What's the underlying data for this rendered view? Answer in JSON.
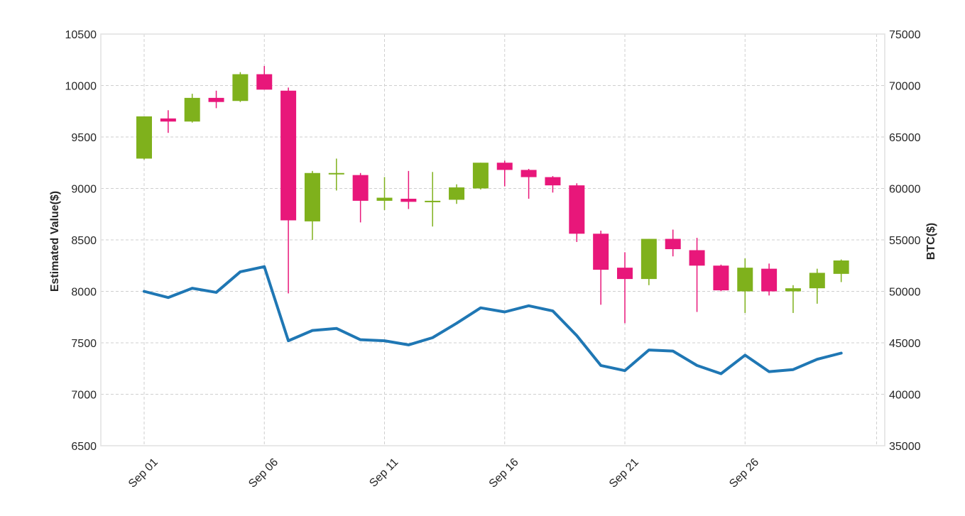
{
  "chart_data": {
    "type": "candlestick",
    "xlabel": "",
    "ylabel_left": "Estimated Value($)",
    "ylabel_right": "BTC($)",
    "ylim_left": [
      6500,
      10500
    ],
    "ylim_right": [
      35000,
      75000
    ],
    "yticks_left": [
      6500,
      7000,
      7500,
      8000,
      8500,
      9000,
      9500,
      10000,
      10500
    ],
    "yticks_right": [
      35000,
      40000,
      45000,
      50000,
      55000,
      60000,
      65000,
      70000,
      75000
    ],
    "xtick_labels": [
      {
        "day": 1,
        "label": "Sep 01"
      },
      {
        "day": 6,
        "label": "Sep 06"
      },
      {
        "day": 11,
        "label": "Sep 11"
      },
      {
        "day": 16,
        "label": "Sep 16"
      },
      {
        "day": 21,
        "label": "Sep 21"
      },
      {
        "day": 26,
        "label": "Sep 26"
      }
    ],
    "xlim_days": [
      1,
      31.5
    ],
    "grid": true,
    "colors": {
      "up": "#7fb11c",
      "down": "#e8177a",
      "line": "#1f77b4"
    },
    "candles": [
      {
        "day": 1,
        "open": 9290,
        "close": 9700,
        "high": 9700,
        "low": 9280
      },
      {
        "day": 2,
        "open": 9680,
        "close": 9650,
        "high": 9760,
        "low": 9540
      },
      {
        "day": 3,
        "open": 9650,
        "close": 9880,
        "high": 9920,
        "low": 9640
      },
      {
        "day": 4,
        "open": 9880,
        "close": 9840,
        "high": 9950,
        "low": 9780
      },
      {
        "day": 5,
        "open": 9850,
        "close": 10110,
        "high": 10130,
        "low": 9840
      },
      {
        "day": 6,
        "open": 10110,
        "close": 9960,
        "high": 10190,
        "low": 9960
      },
      {
        "day": 7,
        "open": 9950,
        "close": 8690,
        "high": 9980,
        "low": 7980
      },
      {
        "day": 8,
        "open": 8680,
        "close": 9150,
        "high": 9170,
        "low": 8500
      },
      {
        "day": 9,
        "open": 9140,
        "close": 9150,
        "high": 9290,
        "low": 8980
      },
      {
        "day": 10,
        "open": 9130,
        "close": 8880,
        "high": 9150,
        "low": 8670
      },
      {
        "day": 11,
        "open": 8880,
        "close": 8910,
        "high": 9110,
        "low": 8790
      },
      {
        "day": 12,
        "open": 8900,
        "close": 8870,
        "high": 9170,
        "low": 8800
      },
      {
        "day": 13,
        "open": 8870,
        "close": 8880,
        "high": 9160,
        "low": 8630
      },
      {
        "day": 14,
        "open": 8890,
        "close": 9010,
        "high": 9040,
        "low": 8850
      },
      {
        "day": 15,
        "open": 9000,
        "close": 9250,
        "high": 9250,
        "low": 8990
      },
      {
        "day": 16,
        "open": 9250,
        "close": 9180,
        "high": 9270,
        "low": 9020
      },
      {
        "day": 17,
        "open": 9180,
        "close": 9110,
        "high": 9190,
        "low": 8900
      },
      {
        "day": 18,
        "open": 9110,
        "close": 9030,
        "high": 9120,
        "low": 8960
      },
      {
        "day": 19,
        "open": 9030,
        "close": 8560,
        "high": 9050,
        "low": 8480
      },
      {
        "day": 20,
        "open": 8560,
        "close": 8210,
        "high": 8590,
        "low": 7870
      },
      {
        "day": 21,
        "open": 8230,
        "close": 8120,
        "high": 8380,
        "low": 7690
      },
      {
        "day": 22,
        "open": 8120,
        "close": 8510,
        "high": 8510,
        "low": 8060
      },
      {
        "day": 23,
        "open": 8510,
        "close": 8410,
        "high": 8600,
        "low": 8340
      },
      {
        "day": 24,
        "open": 8400,
        "close": 8250,
        "high": 8520,
        "low": 7800
      },
      {
        "day": 25,
        "open": 8250,
        "close": 8010,
        "high": 8260,
        "low": 8000
      },
      {
        "day": 26,
        "open": 8000,
        "close": 8230,
        "high": 8320,
        "low": 7790
      },
      {
        "day": 27,
        "open": 8220,
        "close": 8000,
        "high": 8270,
        "low": 7960
      },
      {
        "day": 28,
        "open": 8000,
        "close": 8030,
        "high": 8060,
        "low": 7790
      },
      {
        "day": 29,
        "open": 8030,
        "close": 8180,
        "high": 8220,
        "low": 7880
      },
      {
        "day": 30,
        "open": 8170,
        "close": 8300,
        "high": 8310,
        "low": 8090
      }
    ],
    "btc_line": {
      "axis": "right",
      "days": [
        1,
        2,
        3,
        4,
        5,
        6,
        7,
        8,
        9,
        10,
        11,
        12,
        13,
        14,
        15,
        16,
        17,
        18,
        19,
        20,
        21,
        22,
        23,
        24,
        25,
        26,
        27,
        28,
        29,
        30
      ],
      "values": [
        50000,
        49400,
        50300,
        49900,
        51900,
        52400,
        45200,
        46200,
        46400,
        45300,
        45200,
        44800,
        45500,
        46900,
        48400,
        48000,
        48600,
        48100,
        45700,
        42800,
        42300,
        44300,
        44200,
        42800,
        42000,
        43800,
        42200,
        42400,
        43400,
        44000
      ]
    }
  }
}
